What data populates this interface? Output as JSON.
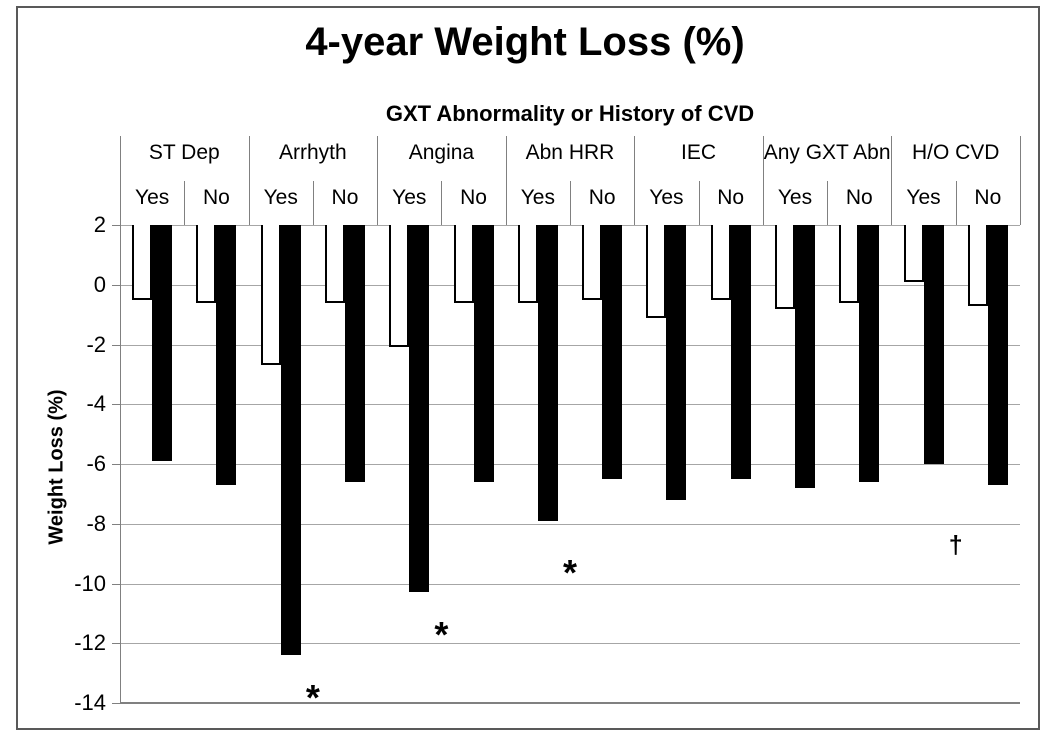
{
  "colors": {
    "background": "#ffffff",
    "text": "#000000",
    "gridline": "#a6a6a6",
    "axis_line": "#808080",
    "figure_border": "#595959",
    "bar_open_fill": "#ffffff",
    "bar_stroke": "#000000",
    "bar_filled_fill": "#000000"
  },
  "chart_data": {
    "type": "bar",
    "title": "4-year Weight Loss (%)",
    "group_axis_label": "GXT Abnormality or History of CVD",
    "ylabel": "Weight Loss (%)",
    "ylim": [
      -14,
      2
    ],
    "yticks": [
      2,
      0,
      -2,
      -4,
      -6,
      -8,
      -10,
      -12,
      -14
    ],
    "grid": "horizontal",
    "legend_position": "none",
    "bars_hang_from_axis_value": 2,
    "groups": [
      "ST Dep",
      "Arrhyth",
      "Angina",
      "Abn HRR",
      "IEC",
      "Any GXT Abn",
      "H/O CVD"
    ],
    "subgroups": [
      "Yes",
      "No"
    ],
    "series": [
      {
        "name": "open-bars",
        "style": "white with black outline",
        "values": [
          [
            -0.5,
            -0.6
          ],
          [
            -2.7,
            -0.6
          ],
          [
            -2.1,
            -0.6
          ],
          [
            -0.6,
            -0.5
          ],
          [
            -1.1,
            -0.5
          ],
          [
            -0.8,
            -0.6
          ],
          [
            0.1,
            -0.7
          ]
        ]
      },
      {
        "name": "filled-bars",
        "style": "solid black",
        "values": [
          [
            -5.9,
            -6.7
          ],
          [
            -12.4,
            -6.6
          ],
          [
            -10.3,
            -6.6
          ],
          [
            -7.9,
            -6.5
          ],
          [
            -7.2,
            -6.5
          ],
          [
            -6.8,
            -6.6
          ],
          [
            -6.0,
            -6.7
          ]
        ]
      }
    ],
    "markers": [
      {
        "group": "Arrhyth",
        "symbol": "*",
        "y": -13.6
      },
      {
        "group": "Angina",
        "symbol": "*",
        "y": -11.5
      },
      {
        "group": "Abn HRR",
        "symbol": "*",
        "y": -9.4
      },
      {
        "group": "H/O CVD",
        "symbol": "†",
        "y": -8.7
      }
    ]
  }
}
